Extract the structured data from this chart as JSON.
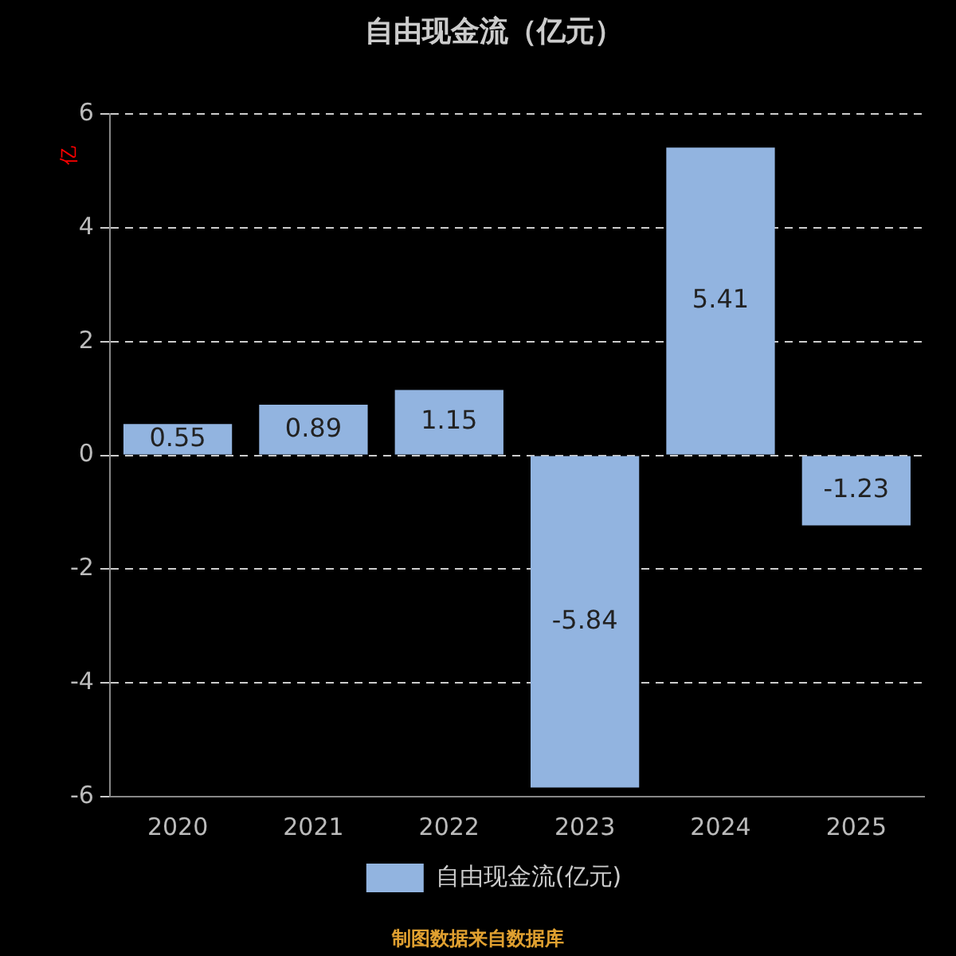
{
  "chart_data": {
    "type": "bar",
    "title": "自由现金流（亿元）",
    "ylabel": "亿",
    "categories": [
      "2020",
      "2021",
      "2022",
      "2023",
      "2024",
      "2025"
    ],
    "series": [
      {
        "name": "自由现金流(亿元)",
        "color": "#92b4e0",
        "values": [
          0.55,
          0.89,
          1.15,
          -5.84,
          5.41,
          -1.23
        ]
      }
    ],
    "ylim": [
      -6,
      6
    ],
    "yticks": [
      -6,
      -4,
      -2,
      0,
      2,
      4,
      6
    ],
    "grid": "y",
    "legend": "bottom",
    "data_labels": true,
    "annotations": [
      "制图数据来自数据库"
    ]
  }
}
